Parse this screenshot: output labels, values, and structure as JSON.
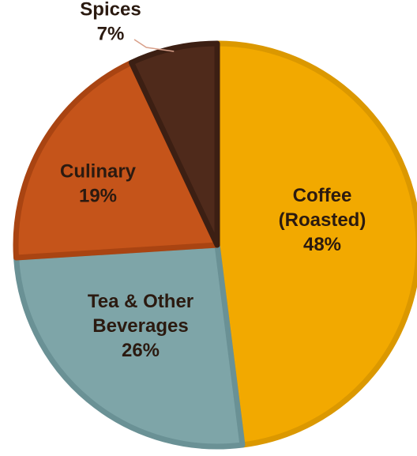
{
  "chart_data": {
    "type": "pie",
    "title": "",
    "slices": [
      {
        "name": "Coffee (Roasted)",
        "lines": [
          "Coffee",
          "(Roasted)"
        ],
        "value": 48,
        "percent_label": "48%",
        "color": "#F2A900",
        "border": "#DB9800"
      },
      {
        "name": "Tea & Other Beverages",
        "lines": [
          "Tea & Other",
          "Beverages"
        ],
        "value": 26,
        "percent_label": "26%",
        "color": "#7EA5A8",
        "border": "#6A9195"
      },
      {
        "name": "Culinary",
        "lines": [
          "Culinary"
        ],
        "value": 19,
        "percent_label": "19%",
        "color": "#C5541A",
        "border": "#A94412"
      },
      {
        "name": "Spices",
        "lines": [
          "Spices"
        ],
        "value": 7,
        "percent_label": "7%",
        "color": "#4F2A1B",
        "border": "#3C1F13"
      }
    ],
    "start_angle_deg": 0,
    "direction": "clockwise",
    "legend": "none",
    "data_labels": "category and percent"
  }
}
